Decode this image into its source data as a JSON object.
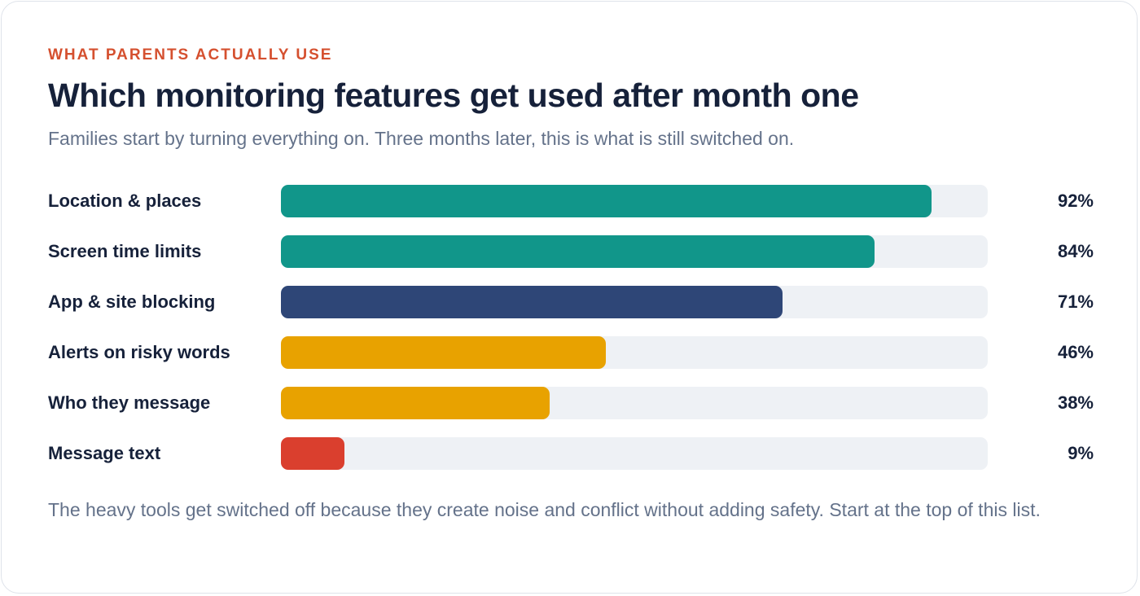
{
  "eyebrow": "WHAT PARENTS ACTUALLY USE",
  "title": "Which monitoring features get used after month one",
  "subtitle": "Families start by turning everything on. Three months later, this is what is still switched on.",
  "footnote": "The heavy tools get switched off because they create noise and conflict without adding safety. Start at the top of this list.",
  "colors": {
    "teal": "#11968a",
    "navy": "#2e4677",
    "amber": "#e8a200",
    "red": "#da3f2e",
    "track": "#eef1f5"
  },
  "chart_data": {
    "type": "bar",
    "orientation": "horizontal",
    "categories": [
      "Location & places",
      "Screen time limits",
      "App & site blocking",
      "Alerts on risky words",
      "Who they message",
      "Message text"
    ],
    "values": [
      92,
      84,
      71,
      46,
      38,
      9
    ],
    "value_labels": [
      "92%",
      "84%",
      "71%",
      "46%",
      "38%",
      "9%"
    ],
    "bar_colors": [
      "#11968a",
      "#11968a",
      "#2e4677",
      "#e8a200",
      "#e8a200",
      "#da3f2e"
    ],
    "xlim": [
      0,
      100
    ],
    "unit": "%",
    "grid": false,
    "legend": "none"
  }
}
